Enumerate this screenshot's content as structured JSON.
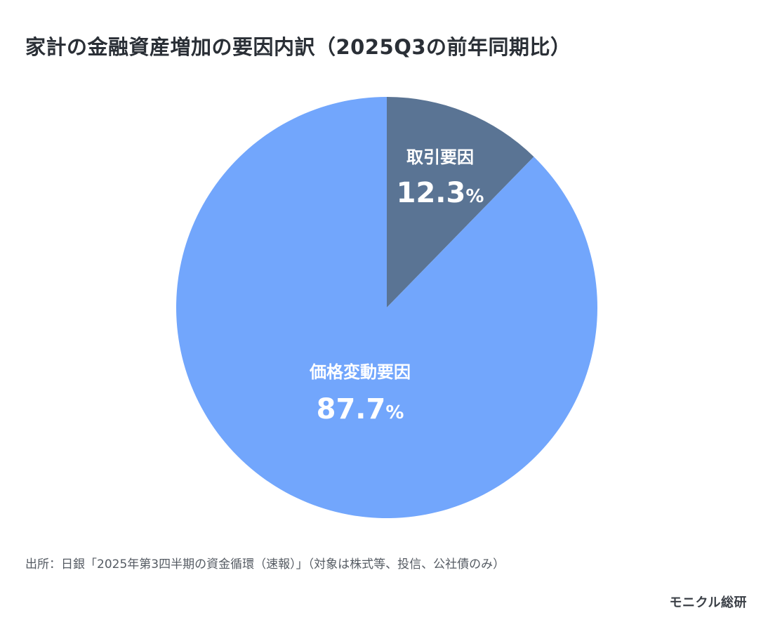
{
  "title": "家計の金融資産増加の要因内訳（2025Q3の前年同期比）",
  "source": "出所：日銀「2025年第3四半期の資金循環（速報）」（対象は株式等、投信、公社債のみ）",
  "brand": "モニクル総研",
  "colors": {
    "transaction": "#5a7494",
    "price": "#72a6fc",
    "label_text": "#ffffff"
  },
  "chart_data": {
    "type": "pie",
    "title": "家計の金融資産増加の要因内訳（2025Q3の前年同期比）",
    "slices": [
      {
        "label": "取引要因",
        "value": 12.3,
        "display": "12.3",
        "unit": "%",
        "color": "#5a7494"
      },
      {
        "label": "価格変動要因",
        "value": 87.7,
        "display": "87.7",
        "unit": "%",
        "color": "#72a6fc"
      }
    ],
    "start": "12 o'clock",
    "direction": "clockwise",
    "legend": "none"
  }
}
